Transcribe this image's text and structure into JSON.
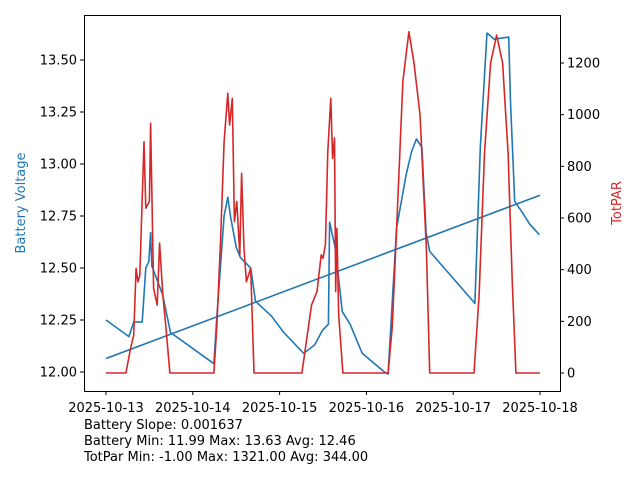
{
  "chart_data": {
    "type": "line",
    "xlabel": "",
    "ylabel_left": "Battery Voltage",
    "ylabel_right": "TotPAR",
    "x_ticks": [
      "2025-10-13",
      "2025-10-14",
      "2025-10-15",
      "2025-10-16",
      "2025-10-17",
      "2025-10-18"
    ],
    "ylim_left": [
      11.91,
      13.73
    ],
    "y_ticks_left": [
      "12.00",
      "12.25",
      "12.50",
      "12.75",
      "13.00",
      "13.25",
      "13.50"
    ],
    "ylim_right": [
      -70,
      1390
    ],
    "y_ticks_right": [
      "0",
      "200",
      "400",
      "600",
      "800",
      "1000",
      "1200"
    ],
    "grid": false,
    "colors": {
      "battery": "#1f77b4",
      "totpar": "#d62728"
    },
    "series": [
      {
        "key": "battery",
        "axis": "left",
        "color": "#1f77b4",
        "points": [
          [
            "2025-10-13 00:00",
            12.25
          ],
          [
            "2025-10-13 06:20",
            12.17
          ],
          [
            "2025-10-13 07:40",
            12.24
          ],
          [
            "2025-10-13 10:00",
            12.24
          ],
          [
            "2025-10-13 11:00",
            12.5
          ],
          [
            "2025-10-13 11:50",
            12.53
          ],
          [
            "2025-10-13 12:20",
            12.67
          ],
          [
            "2025-10-13 12:40",
            12.51
          ],
          [
            "2025-10-13 15:40",
            12.37
          ],
          [
            "2025-10-13 17:50",
            12.19
          ],
          [
            "2025-10-14 05:50",
            12.04
          ],
          [
            "2025-10-14 06:40",
            12.27
          ],
          [
            "2025-10-14 08:40",
            12.75
          ],
          [
            "2025-10-14 09:40",
            12.84
          ],
          [
            "2025-10-14 10:30",
            12.74
          ],
          [
            "2025-10-14 12:00",
            12.6
          ],
          [
            "2025-10-14 13:10",
            12.55
          ],
          [
            "2025-10-14 16:00",
            12.5
          ],
          [
            "2025-10-14 17:20",
            12.34
          ],
          [
            "2025-10-14 21:40",
            12.27
          ],
          [
            "2025-10-15 01:10",
            12.19
          ],
          [
            "2025-10-15 06:40",
            12.09
          ],
          [
            "2025-10-15 09:40",
            12.13
          ],
          [
            "2025-10-15 11:50",
            12.2
          ],
          [
            "2025-10-15 13:30",
            12.23
          ],
          [
            "2025-10-15 13:50",
            12.72
          ],
          [
            "2025-10-15 15:20",
            12.6
          ],
          [
            "2025-10-15 17:20",
            12.29
          ],
          [
            "2025-10-15 19:30",
            12.23
          ],
          [
            "2025-10-15 22:50",
            12.09
          ],
          [
            "2025-10-16 05:00",
            12.0
          ],
          [
            "2025-10-16 06:00",
            11.99
          ],
          [
            "2025-10-16 08:20",
            12.69
          ],
          [
            "2025-10-16 11:00",
            12.95
          ],
          [
            "2025-10-16 12:30",
            13.06
          ],
          [
            "2025-10-16 13:50",
            13.12
          ],
          [
            "2025-10-16 15:20",
            13.08
          ],
          [
            "2025-10-16 16:30",
            12.67
          ],
          [
            "2025-10-16 17:30",
            12.58
          ],
          [
            "2025-10-17 00:00",
            12.45
          ],
          [
            "2025-10-17 06:00",
            12.33
          ],
          [
            "2025-10-17 07:30",
            13.08
          ],
          [
            "2025-10-17 09:20",
            13.63
          ],
          [
            "2025-10-17 11:20",
            13.6
          ],
          [
            "2025-10-17 15:20",
            13.61
          ],
          [
            "2025-10-17 15:50",
            13.3
          ],
          [
            "2025-10-17 17:00",
            12.82
          ],
          [
            "2025-10-17 19:00",
            12.77
          ],
          [
            "2025-10-17 21:10",
            12.71
          ],
          [
            "2025-10-17 23:50",
            12.66
          ]
        ]
      },
      {
        "key": "battery_trend",
        "axis": "left",
        "color": "#1f77b4",
        "points": [
          [
            "2025-10-13 00:00",
            12.065
          ],
          [
            "2025-10-18 00:00",
            12.85
          ]
        ]
      },
      {
        "key": "totpar",
        "axis": "right",
        "color": "#d62728",
        "points": [
          [
            "2025-10-13 00:00",
            0
          ],
          [
            "2025-10-13 05:30",
            0
          ],
          [
            "2025-10-13 06:50",
            97
          ],
          [
            "2025-10-13 07:40",
            147
          ],
          [
            "2025-10-13 08:20",
            405
          ],
          [
            "2025-10-13 08:50",
            353
          ],
          [
            "2025-10-13 09:20",
            378
          ],
          [
            "2025-10-13 10:30",
            895
          ],
          [
            "2025-10-13 11:00",
            638
          ],
          [
            "2025-10-13 12:00",
            664
          ],
          [
            "2025-10-13 12:20",
            967
          ],
          [
            "2025-10-13 13:10",
            328
          ],
          [
            "2025-10-13 14:10",
            263
          ],
          [
            "2025-10-13 14:50",
            503
          ],
          [
            "2025-10-13 15:40",
            310
          ],
          [
            "2025-10-13 16:30",
            186
          ],
          [
            "2025-10-13 17:40",
            0
          ],
          [
            "2025-10-14 05:50",
            0
          ],
          [
            "2025-10-14 06:40",
            186
          ],
          [
            "2025-10-14 07:40",
            508
          ],
          [
            "2025-10-14 08:40",
            895
          ],
          [
            "2025-10-14 09:40",
            1083
          ],
          [
            "2025-10-14 10:10",
            960
          ],
          [
            "2025-10-14 10:55",
            1063
          ],
          [
            "2025-10-14 11:30",
            586
          ],
          [
            "2025-10-14 12:10",
            664
          ],
          [
            "2025-10-14 13:00",
            457
          ],
          [
            "2025-10-14 13:30",
            773
          ],
          [
            "2025-10-14 14:10",
            483
          ],
          [
            "2025-10-14 14:50",
            353
          ],
          [
            "2025-10-14 16:00",
            405
          ],
          [
            "2025-10-14 16:55",
            0
          ],
          [
            "2025-10-15 06:10",
            0
          ],
          [
            "2025-10-15 07:40",
            147
          ],
          [
            "2025-10-15 08:50",
            263
          ],
          [
            "2025-10-15 10:20",
            315
          ],
          [
            "2025-10-15 11:30",
            457
          ],
          [
            "2025-10-15 12:00",
            444
          ],
          [
            "2025-10-15 12:40",
            496
          ],
          [
            "2025-10-15 13:20",
            857
          ],
          [
            "2025-10-15 14:10",
            1063
          ],
          [
            "2025-10-15 14:40",
            831
          ],
          [
            "2025-10-15 15:10",
            909
          ],
          [
            "2025-10-15 15:30",
            315
          ],
          [
            "2025-10-15 15:50",
            560
          ],
          [
            "2025-10-15 16:20",
            224
          ],
          [
            "2025-10-15 17:30",
            0
          ],
          [
            "2025-10-16 06:00",
            0
          ],
          [
            "2025-10-16 07:10",
            180
          ],
          [
            "2025-10-16 08:20",
            550
          ],
          [
            "2025-10-16 10:05",
            1130
          ],
          [
            "2025-10-16 11:45",
            1321
          ],
          [
            "2025-10-16 13:10",
            1200
          ],
          [
            "2025-10-16 14:50",
            1000
          ],
          [
            "2025-10-16 16:35",
            480
          ],
          [
            "2025-10-16 17:30",
            0
          ],
          [
            "2025-10-17 05:45",
            0
          ],
          [
            "2025-10-17 07:10",
            300
          ],
          [
            "2025-10-17 08:40",
            850
          ],
          [
            "2025-10-17 10:20",
            1200
          ],
          [
            "2025-10-17 12:00",
            1308
          ],
          [
            "2025-10-17 13:40",
            1200
          ],
          [
            "2025-10-17 15:10",
            850
          ],
          [
            "2025-10-17 16:20",
            350
          ],
          [
            "2025-10-17 17:20",
            0
          ],
          [
            "2025-10-18 00:00",
            0
          ]
        ]
      }
    ]
  },
  "stats": {
    "line1": "Battery Slope: 0.001637",
    "line2": "Battery Min: 11.99 Max: 13.63 Avg: 12.46",
    "line3": "TotPar Min: -1.00 Max: 1321.00 Avg: 344.00"
  }
}
